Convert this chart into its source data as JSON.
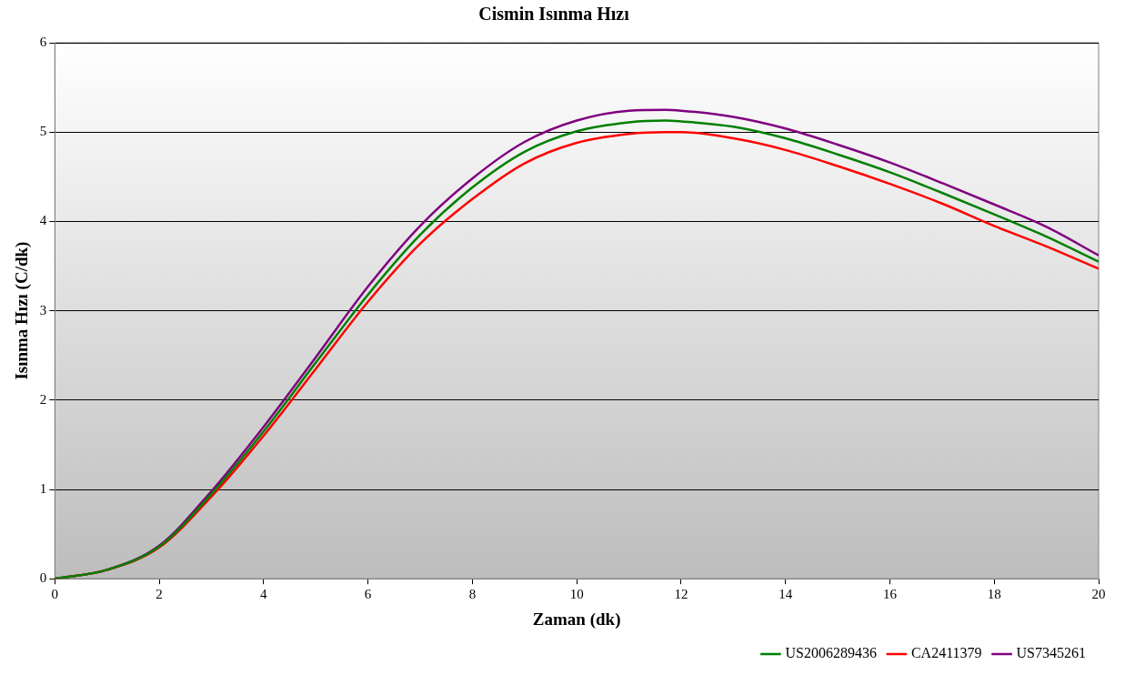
{
  "chart_data": {
    "type": "line",
    "title": "Cismin Isınma Hızı",
    "xlabel": "Zaman (dk)",
    "ylabel": "Isınma Hızı (C/dk)",
    "x": [
      0,
      1,
      2,
      3,
      4,
      5,
      6,
      7,
      8,
      9,
      10,
      11,
      11.7,
      12,
      13,
      14,
      15,
      16,
      17,
      18,
      19,
      20
    ],
    "series": [
      {
        "name": "US2006289436",
        "color": "#008000",
        "values": [
          0,
          0.1,
          0.36,
          0.95,
          1.65,
          2.42,
          3.18,
          3.85,
          4.38,
          4.78,
          5.01,
          5.11,
          5.13,
          5.12,
          5.06,
          4.93,
          4.75,
          4.55,
          4.32,
          4.08,
          3.83,
          3.55
        ]
      },
      {
        "name": "CA2411379",
        "color": "#ff0000",
        "values": [
          0,
          0.1,
          0.35,
          0.92,
          1.6,
          2.35,
          3.1,
          3.75,
          4.25,
          4.65,
          4.88,
          4.98,
          5.0,
          5.0,
          4.93,
          4.8,
          4.62,
          4.42,
          4.2,
          3.95,
          3.72,
          3.47
        ]
      },
      {
        "name": "US7345261",
        "color": "#800080",
        "values": [
          0,
          0.1,
          0.37,
          0.98,
          1.7,
          2.48,
          3.27,
          3.95,
          4.48,
          4.89,
          5.13,
          5.24,
          5.25,
          5.24,
          5.17,
          5.04,
          4.86,
          4.66,
          4.43,
          4.19,
          3.94,
          3.62
        ]
      }
    ],
    "xlim": [
      0,
      20
    ],
    "xticks": [
      0,
      2,
      4,
      6,
      8,
      10,
      12,
      14,
      16,
      18,
      20
    ],
    "ylim": [
      0,
      6
    ],
    "yticks": [
      0,
      1,
      2,
      3,
      4,
      5,
      6
    ],
    "grid": "y",
    "legend": "bottom right",
    "marker": "none",
    "line_style": "solid"
  }
}
